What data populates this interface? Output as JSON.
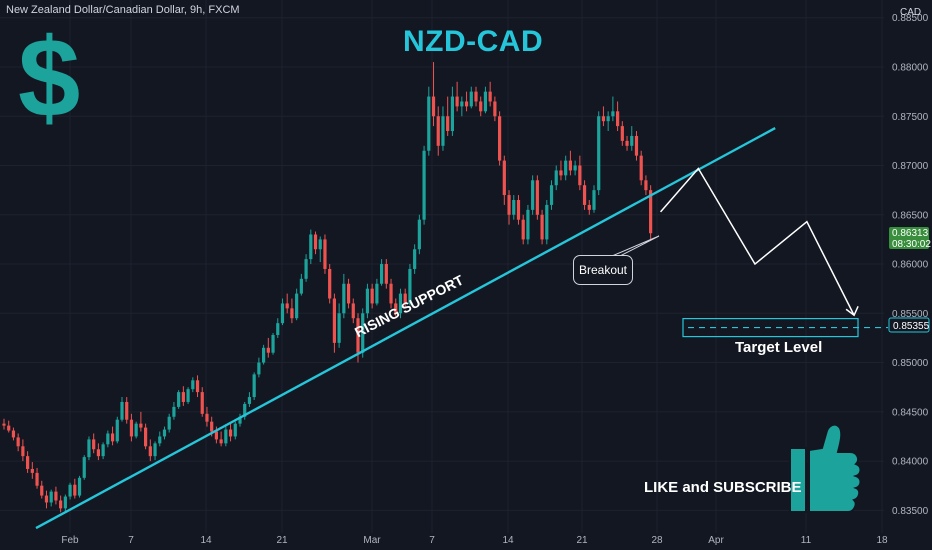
{
  "header": {
    "symbol_info": "New Zealand Dollar/Canadian Dollar, 9h, FXCM",
    "title": "NZD-CAD",
    "currency_unit": "CAD"
  },
  "annotations": {
    "support_label": "RISING SUPPORT",
    "breakout_label": "Breakout",
    "target_label": "Target Level",
    "cta": "LIKE and SUBSCRIBE",
    "dollar_sign": "$"
  },
  "price_badges": {
    "current_price": "0.86313",
    "countdown": "08:30:02",
    "target_price": "0.85355"
  },
  "colors": {
    "background": "#131722",
    "up": "#1ba39c",
    "down": "#ef5350",
    "accent": "#26c6da",
    "current_badge": "#388e3c"
  },
  "chart_data": {
    "type": "candlestick",
    "y_ticks": [
      "0.88500",
      "0.88000",
      "0.87500",
      "0.87000",
      "0.86500",
      "0.86000",
      "0.85500",
      "0.85000",
      "0.84500",
      "0.84000",
      "0.83500"
    ],
    "x_ticks": [
      "Feb",
      "7",
      "14",
      "21",
      "Mar",
      "7",
      "14",
      "21",
      "28",
      "Apr",
      "11",
      "18"
    ],
    "ylim": [
      0.8327,
      0.8868
    ],
    "current_price": 0.86313,
    "target_price": 0.85355,
    "support_line": [
      [
        0,
        0.8332
      ],
      [
        210,
        0.8738
      ]
    ],
    "projection": [
      [
        173,
        0.8653
      ],
      [
        181,
        0.8697
      ],
      [
        193,
        0.86
      ],
      [
        204,
        0.8643
      ],
      [
        214,
        0.8548
      ]
    ],
    "candles": [
      [
        0.8438,
        0.8443,
        0.8432,
        0.8436
      ],
      [
        0.8436,
        0.8441,
        0.8429,
        0.8431
      ],
      [
        0.8431,
        0.8434,
        0.8421,
        0.8424
      ],
      [
        0.8424,
        0.8428,
        0.841,
        0.8415
      ],
      [
        0.8415,
        0.8422,
        0.84,
        0.8405
      ],
      [
        0.8405,
        0.841,
        0.8388,
        0.8392
      ],
      [
        0.8392,
        0.8399,
        0.8382,
        0.8388
      ],
      [
        0.8388,
        0.8393,
        0.8372,
        0.8375
      ],
      [
        0.8375,
        0.838,
        0.8362,
        0.8365
      ],
      [
        0.8365,
        0.837,
        0.8352,
        0.8358
      ],
      [
        0.8358,
        0.8371,
        0.8354,
        0.8369
      ],
      [
        0.8369,
        0.8374,
        0.8356,
        0.836
      ],
      [
        0.836,
        0.8365,
        0.8348,
        0.8352
      ],
      [
        0.8352,
        0.8366,
        0.8349,
        0.8364
      ],
      [
        0.8364,
        0.8378,
        0.8361,
        0.8376
      ],
      [
        0.8376,
        0.8382,
        0.8362,
        0.8365
      ],
      [
        0.8365,
        0.8385,
        0.8363,
        0.8383
      ],
      [
        0.8383,
        0.8406,
        0.8381,
        0.8404
      ],
      [
        0.8404,
        0.8425,
        0.8401,
        0.8422
      ],
      [
        0.8422,
        0.8428,
        0.8408,
        0.8412
      ],
      [
        0.8412,
        0.8418,
        0.8401,
        0.8405
      ],
      [
        0.8405,
        0.8419,
        0.8402,
        0.8417
      ],
      [
        0.8417,
        0.8431,
        0.8414,
        0.8428
      ],
      [
        0.8428,
        0.8435,
        0.8416,
        0.842
      ],
      [
        0.842,
        0.8445,
        0.8418,
        0.8442
      ],
      [
        0.8442,
        0.8465,
        0.844,
        0.846
      ],
      [
        0.846,
        0.8465,
        0.8438,
        0.8442
      ],
      [
        0.8442,
        0.8448,
        0.842,
        0.8425
      ],
      [
        0.8425,
        0.844,
        0.8423,
        0.8438
      ],
      [
        0.8438,
        0.845,
        0.843,
        0.8434
      ],
      [
        0.8434,
        0.8438,
        0.8412,
        0.8415
      ],
      [
        0.8415,
        0.8422,
        0.84,
        0.8405
      ],
      [
        0.8405,
        0.842,
        0.8401,
        0.8418
      ],
      [
        0.8418,
        0.843,
        0.8415,
        0.8425
      ],
      [
        0.8425,
        0.8435,
        0.8422,
        0.8432
      ],
      [
        0.8432,
        0.8448,
        0.8429,
        0.8445
      ],
      [
        0.8445,
        0.846,
        0.8442,
        0.8455
      ],
      [
        0.8455,
        0.8472,
        0.8453,
        0.847
      ],
      [
        0.847,
        0.8476,
        0.8456,
        0.846
      ],
      [
        0.846,
        0.8475,
        0.8458,
        0.8473
      ],
      [
        0.8473,
        0.8485,
        0.847,
        0.8482
      ],
      [
        0.8482,
        0.8487,
        0.8465,
        0.847
      ],
      [
        0.847,
        0.8475,
        0.8445,
        0.8448
      ],
      [
        0.8448,
        0.8455,
        0.8435,
        0.844
      ],
      [
        0.844,
        0.8445,
        0.8425,
        0.843
      ],
      [
        0.843,
        0.8435,
        0.8418,
        0.8422
      ],
      [
        0.8422,
        0.843,
        0.8415,
        0.8418
      ],
      [
        0.8418,
        0.8435,
        0.8415,
        0.8432
      ],
      [
        0.8432,
        0.8438,
        0.842,
        0.8425
      ],
      [
        0.8425,
        0.844,
        0.8422,
        0.8438
      ],
      [
        0.8438,
        0.8448,
        0.8435,
        0.8445
      ],
      [
        0.8445,
        0.846,
        0.8442,
        0.8458
      ],
      [
        0.8458,
        0.847,
        0.8455,
        0.8465
      ],
      [
        0.8465,
        0.849,
        0.8462,
        0.8488
      ],
      [
        0.8488,
        0.8505,
        0.8485,
        0.85
      ],
      [
        0.85,
        0.8518,
        0.8498,
        0.8515
      ],
      [
        0.8515,
        0.8525,
        0.8505,
        0.851
      ],
      [
        0.851,
        0.853,
        0.8508,
        0.8528
      ],
      [
        0.8528,
        0.8545,
        0.8525,
        0.854
      ],
      [
        0.854,
        0.8565,
        0.8538,
        0.856
      ],
      [
        0.856,
        0.857,
        0.855,
        0.8555
      ],
      [
        0.8555,
        0.8565,
        0.854,
        0.8545
      ],
      [
        0.8545,
        0.8575,
        0.8543,
        0.857
      ],
      [
        0.857,
        0.859,
        0.8568,
        0.8585
      ],
      [
        0.8585,
        0.861,
        0.8582,
        0.8605
      ],
      [
        0.8605,
        0.8635,
        0.86,
        0.863
      ],
      [
        0.863,
        0.8633,
        0.861,
        0.8615
      ],
      [
        0.8615,
        0.8628,
        0.8602,
        0.8625
      ],
      [
        0.8625,
        0.863,
        0.859,
        0.8595
      ],
      [
        0.8595,
        0.86,
        0.856,
        0.8565
      ],
      [
        0.8565,
        0.857,
        0.851,
        0.852
      ],
      [
        0.852,
        0.856,
        0.8515,
        0.855
      ],
      [
        0.855,
        0.859,
        0.8545,
        0.858
      ],
      [
        0.858,
        0.8585,
        0.8555,
        0.856
      ],
      [
        0.856,
        0.8565,
        0.854,
        0.8545
      ],
      [
        0.8545,
        0.855,
        0.85,
        0.851
      ],
      [
        0.851,
        0.8555,
        0.8505,
        0.855
      ],
      [
        0.855,
        0.858,
        0.8545,
        0.8575
      ],
      [
        0.8575,
        0.858,
        0.8555,
        0.856
      ],
      [
        0.856,
        0.8585,
        0.8558,
        0.858
      ],
      [
        0.858,
        0.8605,
        0.8578,
        0.86
      ],
      [
        0.86,
        0.8605,
        0.8575,
        0.858
      ],
      [
        0.858,
        0.8585,
        0.8555,
        0.856
      ],
      [
        0.856,
        0.8565,
        0.8545,
        0.855
      ],
      [
        0.855,
        0.8575,
        0.8545,
        0.857
      ],
      [
        0.857,
        0.8575,
        0.8555,
        0.856
      ],
      [
        0.856,
        0.86,
        0.8558,
        0.8595
      ],
      [
        0.8595,
        0.862,
        0.859,
        0.8615
      ],
      [
        0.8615,
        0.865,
        0.861,
        0.8645
      ],
      [
        0.8645,
        0.872,
        0.864,
        0.8715
      ],
      [
        0.8715,
        0.878,
        0.871,
        0.877
      ],
      [
        0.877,
        0.8805,
        0.874,
        0.875
      ],
      [
        0.875,
        0.876,
        0.871,
        0.872
      ],
      [
        0.872,
        0.876,
        0.8715,
        0.875
      ],
      [
        0.875,
        0.877,
        0.873,
        0.8735
      ],
      [
        0.8735,
        0.878,
        0.873,
        0.877
      ],
      [
        0.877,
        0.8785,
        0.8755,
        0.876
      ],
      [
        0.876,
        0.877,
        0.875,
        0.8765
      ],
      [
        0.8765,
        0.8775,
        0.8755,
        0.876
      ],
      [
        0.876,
        0.878,
        0.8758,
        0.8775
      ],
      [
        0.8775,
        0.878,
        0.876,
        0.8765
      ],
      [
        0.8765,
        0.877,
        0.875,
        0.8755
      ],
      [
        0.8755,
        0.878,
        0.8753,
        0.8775
      ],
      [
        0.8775,
        0.8785,
        0.876,
        0.8765
      ],
      [
        0.8765,
        0.877,
        0.8745,
        0.875
      ],
      [
        0.875,
        0.8755,
        0.87,
        0.8705
      ],
      [
        0.8705,
        0.871,
        0.866,
        0.867
      ],
      [
        0.867,
        0.8675,
        0.864,
        0.865
      ],
      [
        0.865,
        0.867,
        0.8645,
        0.8665
      ],
      [
        0.8665,
        0.867,
        0.864,
        0.8645
      ],
      [
        0.8645,
        0.865,
        0.862,
        0.8625
      ],
      [
        0.8625,
        0.866,
        0.862,
        0.8655
      ],
      [
        0.8655,
        0.869,
        0.865,
        0.8685
      ],
      [
        0.8685,
        0.869,
        0.8645,
        0.865
      ],
      [
        0.865,
        0.8655,
        0.862,
        0.8625
      ],
      [
        0.8625,
        0.8665,
        0.862,
        0.866
      ],
      [
        0.866,
        0.8685,
        0.8655,
        0.868
      ],
      [
        0.868,
        0.87,
        0.8675,
        0.8695
      ],
      [
        0.8695,
        0.8705,
        0.8685,
        0.869
      ],
      [
        0.869,
        0.871,
        0.8685,
        0.8705
      ],
      [
        0.8705,
        0.8715,
        0.869,
        0.8695
      ],
      [
        0.8695,
        0.8705,
        0.869,
        0.87
      ],
      [
        0.87,
        0.871,
        0.8675,
        0.868
      ],
      [
        0.868,
        0.8685,
        0.8655,
        0.866
      ],
      [
        0.866,
        0.8665,
        0.865,
        0.8655
      ],
      [
        0.8655,
        0.868,
        0.8652,
        0.8675
      ],
      [
        0.8675,
        0.8755,
        0.867,
        0.875
      ],
      [
        0.875,
        0.876,
        0.874,
        0.8745
      ],
      [
        0.8745,
        0.8755,
        0.8735,
        0.875
      ],
      [
        0.875,
        0.877,
        0.8745,
        0.8755
      ],
      [
        0.8755,
        0.8765,
        0.8735,
        0.874
      ],
      [
        0.874,
        0.8745,
        0.872,
        0.8725
      ],
      [
        0.8725,
        0.873,
        0.8715,
        0.872
      ],
      [
        0.872,
        0.874,
        0.8715,
        0.873
      ],
      [
        0.873,
        0.8735,
        0.8705,
        0.871
      ],
      [
        0.871,
        0.8715,
        0.868,
        0.8685
      ],
      [
        0.8685,
        0.869,
        0.867,
        0.8675
      ],
      [
        0.8675,
        0.868,
        0.8625,
        0.86313
      ]
    ]
  }
}
